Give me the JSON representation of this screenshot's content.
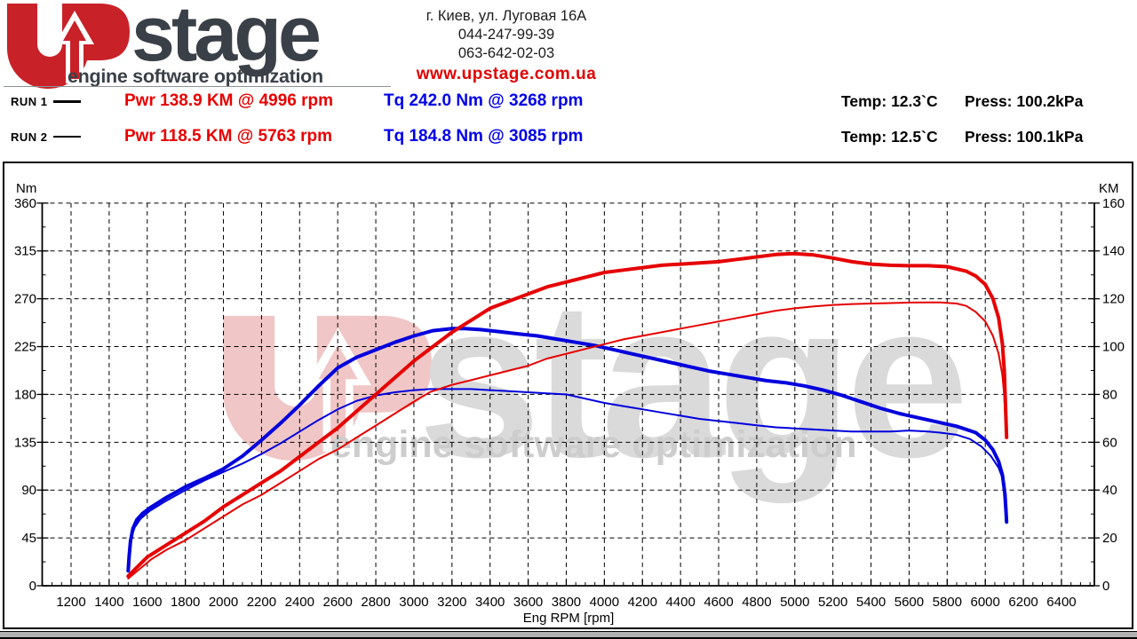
{
  "header": {
    "logo": {
      "brand": "stage",
      "tagline": "engine software optimization",
      "brand_color": "#3a4047",
      "accent_red": "#c92128"
    },
    "contact": {
      "address": "г. Киев, ул. Луговая 16А",
      "phone1": "044-247-99-39",
      "phone2": "063-642-02-03",
      "website": "www.upstage.com.ua"
    },
    "runs": [
      {
        "label": "RUN 1",
        "power": "Pwr  138.9 KM @ 4996 rpm",
        "torque": "Tq 242.0 Nm @ 3268 rpm",
        "temp": "Temp: 12.3`C",
        "press": "Press: 100.2kPa"
      },
      {
        "label": "RUN 2",
        "power": "Pwr  118.5 KM @ 5763 rpm",
        "torque": "Tq 184.8 Nm @ 3085 rpm",
        "temp": "Temp: 12.5`C",
        "press": "Press: 100.1kPa"
      }
    ]
  },
  "watermark": {
    "brand": "stage",
    "tagline": "engine software optimization"
  },
  "chart_data": {
    "type": "line",
    "title": "",
    "grid": {
      "style": "dashed",
      "color": "#000000"
    },
    "x_axis": {
      "label": "Eng RPM [rpm]",
      "min": 1050,
      "max": 6570,
      "minor_step": 50,
      "major_ticks": [
        1200,
        1400,
        1600,
        1800,
        2000,
        2200,
        2400,
        2600,
        2800,
        3000,
        3200,
        3400,
        3600,
        3800,
        4000,
        4200,
        4400,
        4600,
        4800,
        5000,
        5200,
        5400,
        5600,
        5800,
        6000,
        6200,
        6400
      ]
    },
    "y_left_axis": {
      "label": "Nm",
      "min": 0,
      "max": 360,
      "minor_step": 22.5,
      "major_ticks": [
        0,
        45,
        90,
        135,
        180,
        225,
        270,
        315,
        360
      ]
    },
    "y_right_axis": {
      "label": "KM",
      "min": 0,
      "max": 160,
      "minor_step": 10,
      "major_ticks": [
        0,
        20,
        40,
        60,
        80,
        100,
        120,
        140,
        160
      ]
    },
    "series": [
      {
        "name": "run2-torque",
        "legend": "RUN 2 Tq",
        "axis": "left",
        "unit": "Nm",
        "color": "#0000dd",
        "width": 2,
        "peak": {
          "value": 184.8,
          "rpm": 3085
        },
        "points": [
          [
            1500,
            20
          ],
          [
            1506,
            33
          ],
          [
            1515,
            45
          ],
          [
            1535,
            55
          ],
          [
            1565,
            63
          ],
          [
            1610,
            70
          ],
          [
            1700,
            80
          ],
          [
            1800,
            90
          ],
          [
            1900,
            99
          ],
          [
            2000,
            107
          ],
          [
            2100,
            115
          ],
          [
            2200,
            124
          ],
          [
            2300,
            134
          ],
          [
            2400,
            145
          ],
          [
            2500,
            156
          ],
          [
            2600,
            166
          ],
          [
            2700,
            174
          ],
          [
            2800,
            179
          ],
          [
            2900,
            182
          ],
          [
            3000,
            184
          ],
          [
            3085,
            185
          ],
          [
            3200,
            185
          ],
          [
            3300,
            185
          ],
          [
            3400,
            184
          ],
          [
            3500,
            183
          ],
          [
            3600,
            182
          ],
          [
            3700,
            181
          ],
          [
            3800,
            180
          ],
          [
            3900,
            176
          ],
          [
            4000,
            172
          ],
          [
            4100,
            169
          ],
          [
            4200,
            166
          ],
          [
            4300,
            163
          ],
          [
            4400,
            160
          ],
          [
            4500,
            157
          ],
          [
            4600,
            155
          ],
          [
            4700,
            153
          ],
          [
            4800,
            151
          ],
          [
            4900,
            149
          ],
          [
            5000,
            148
          ],
          [
            5100,
            147
          ],
          [
            5200,
            146
          ],
          [
            5300,
            145
          ],
          [
            5400,
            145
          ],
          [
            5500,
            145
          ],
          [
            5600,
            146
          ],
          [
            5700,
            145
          ],
          [
            5763,
            144
          ],
          [
            5850,
            142
          ],
          [
            5920,
            138
          ],
          [
            5980,
            131
          ],
          [
            6030,
            122
          ],
          [
            6070,
            111
          ],
          [
            6095,
            99
          ],
          [
            6108,
            85
          ],
          [
            6112,
            72
          ]
        ]
      },
      {
        "name": "run1-torque",
        "legend": "RUN 1 Tq",
        "axis": "left",
        "unit": "Nm",
        "color": "#0000dd",
        "width": 4,
        "peak": {
          "value": 242.0,
          "rpm": 3268
        },
        "points": [
          [
            1500,
            14
          ],
          [
            1505,
            28
          ],
          [
            1512,
            42
          ],
          [
            1525,
            54
          ],
          [
            1545,
            62
          ],
          [
            1575,
            68
          ],
          [
            1620,
            74
          ],
          [
            1700,
            83
          ],
          [
            1800,
            93
          ],
          [
            1900,
            101
          ],
          [
            2000,
            110
          ],
          [
            2100,
            122
          ],
          [
            2200,
            137
          ],
          [
            2300,
            153
          ],
          [
            2400,
            170
          ],
          [
            2500,
            188
          ],
          [
            2600,
            205
          ],
          [
            2700,
            215
          ],
          [
            2800,
            222
          ],
          [
            2900,
            229
          ],
          [
            3000,
            235
          ],
          [
            3100,
            240
          ],
          [
            3200,
            242
          ],
          [
            3268,
            242
          ],
          [
            3350,
            241
          ],
          [
            3450,
            239
          ],
          [
            3550,
            237
          ],
          [
            3650,
            235
          ],
          [
            3750,
            232
          ],
          [
            3850,
            229
          ],
          [
            3950,
            226
          ],
          [
            4050,
            222
          ],
          [
            4150,
            218
          ],
          [
            4250,
            214
          ],
          [
            4350,
            210
          ],
          [
            4450,
            206
          ],
          [
            4550,
            202
          ],
          [
            4650,
            199
          ],
          [
            4750,
            196
          ],
          [
            4850,
            193
          ],
          [
            4950,
            191
          ],
          [
            5050,
            188
          ],
          [
            5150,
            184
          ],
          [
            5250,
            179
          ],
          [
            5350,
            173
          ],
          [
            5450,
            167
          ],
          [
            5550,
            162
          ],
          [
            5650,
            158
          ],
          [
            5750,
            154
          ],
          [
            5850,
            150
          ],
          [
            5950,
            144
          ],
          [
            6000,
            137
          ],
          [
            6040,
            128
          ],
          [
            6070,
            117
          ],
          [
            6090,
            104
          ],
          [
            6102,
            88
          ],
          [
            6108,
            72
          ],
          [
            6112,
            60
          ]
        ]
      },
      {
        "name": "run2-power",
        "legend": "RUN 2 Pwr",
        "axis": "right",
        "unit": "KM",
        "color": "#e60000",
        "width": 2,
        "peak": {
          "value": 118.5,
          "rpm": 5763
        },
        "points": [
          [
            1500,
            3
          ],
          [
            1560,
            7
          ],
          [
            1620,
            11
          ],
          [
            1700,
            15
          ],
          [
            1800,
            19
          ],
          [
            1900,
            24
          ],
          [
            2000,
            29
          ],
          [
            2100,
            34
          ],
          [
            2200,
            38
          ],
          [
            2300,
            43
          ],
          [
            2400,
            48
          ],
          [
            2500,
            53
          ],
          [
            2600,
            57
          ],
          [
            2700,
            62
          ],
          [
            2800,
            67
          ],
          [
            2900,
            72
          ],
          [
            3000,
            77
          ],
          [
            3085,
            81
          ],
          [
            3200,
            84
          ],
          [
            3300,
            86
          ],
          [
            3400,
            88
          ],
          [
            3500,
            90
          ],
          [
            3600,
            92
          ],
          [
            3700,
            95
          ],
          [
            3800,
            97
          ],
          [
            3900,
            99
          ],
          [
            4000,
            101
          ],
          [
            4100,
            103
          ],
          [
            4200,
            104.5
          ],
          [
            4300,
            106
          ],
          [
            4400,
            107.5
          ],
          [
            4500,
            109
          ],
          [
            4600,
            110.5
          ],
          [
            4700,
            112
          ],
          [
            4800,
            113.5
          ],
          [
            4900,
            115
          ],
          [
            5000,
            116
          ],
          [
            5100,
            116.8
          ],
          [
            5200,
            117.4
          ],
          [
            5300,
            117.8
          ],
          [
            5400,
            118
          ],
          [
            5500,
            118.2
          ],
          [
            5600,
            118.4
          ],
          [
            5700,
            118.5
          ],
          [
            5763,
            118.5
          ],
          [
            5850,
            118
          ],
          [
            5900,
            117
          ],
          [
            5950,
            114.5
          ],
          [
            6000,
            110.5
          ],
          [
            6040,
            104.5
          ],
          [
            6070,
            97
          ],
          [
            6090,
            88
          ],
          [
            6100,
            79
          ],
          [
            6106,
            70
          ],
          [
            6112,
            63
          ]
        ]
      },
      {
        "name": "run1-power",
        "legend": "RUN 1 Pwr",
        "axis": "right",
        "unit": "KM",
        "color": "#e60000",
        "width": 4,
        "peak": {
          "value": 138.9,
          "rpm": 4996
        },
        "points": [
          [
            1500,
            4
          ],
          [
            1550,
            8
          ],
          [
            1600,
            12
          ],
          [
            1700,
            17
          ],
          [
            1800,
            22
          ],
          [
            1900,
            27
          ],
          [
            2000,
            33
          ],
          [
            2100,
            38
          ],
          [
            2200,
            43
          ],
          [
            2300,
            48
          ],
          [
            2400,
            54
          ],
          [
            2500,
            60
          ],
          [
            2600,
            66
          ],
          [
            2700,
            73
          ],
          [
            2800,
            80
          ],
          [
            2900,
            87
          ],
          [
            3000,
            94
          ],
          [
            3100,
            100
          ],
          [
            3200,
            106
          ],
          [
            3300,
            111
          ],
          [
            3400,
            116
          ],
          [
            3500,
            119
          ],
          [
            3600,
            122
          ],
          [
            3700,
            125
          ],
          [
            3800,
            127
          ],
          [
            3900,
            129
          ],
          [
            4000,
            131
          ],
          [
            4100,
            132
          ],
          [
            4200,
            133
          ],
          [
            4300,
            134
          ],
          [
            4400,
            134.5
          ],
          [
            4500,
            135
          ],
          [
            4600,
            135.5
          ],
          [
            4700,
            136.5
          ],
          [
            4800,
            137.5
          ],
          [
            4900,
            138.5
          ],
          [
            4996,
            138.9
          ],
          [
            5100,
            138.3
          ],
          [
            5200,
            137
          ],
          [
            5300,
            135.5
          ],
          [
            5400,
            134.5
          ],
          [
            5500,
            134
          ],
          [
            5600,
            133.8
          ],
          [
            5700,
            133.8
          ],
          [
            5800,
            133.4
          ],
          [
            5900,
            131.5
          ],
          [
            5950,
            129.5
          ],
          [
            6000,
            126
          ],
          [
            6040,
            120
          ],
          [
            6070,
            112
          ],
          [
            6090,
            101
          ],
          [
            6100,
            90
          ],
          [
            6106,
            76
          ],
          [
            6112,
            62
          ]
        ]
      }
    ]
  }
}
